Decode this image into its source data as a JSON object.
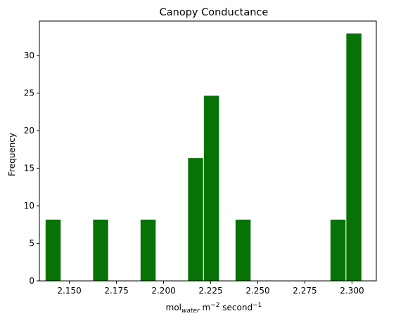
{
  "chart_data": {
    "type": "bar",
    "title": "Canopy Conductance",
    "ylabel": "Frequency",
    "xlabel": {
      "base": "mol",
      "subscript": "water",
      "middle": " m",
      "exp1": "−2",
      "tail": " second",
      "exp2": "−1"
    },
    "xlim": [
      2.1341,
      2.3129
    ],
    "ylim": [
      0,
      34.6
    ],
    "xticks": [
      "2.150",
      "2.175",
      "2.200",
      "2.225",
      "2.250",
      "2.275",
      "2.300"
    ],
    "xtick_values": [
      2.15,
      2.175,
      2.2,
      2.225,
      2.25,
      2.275,
      2.3
    ],
    "yticks": [
      0,
      5,
      10,
      15,
      20,
      25,
      30
    ],
    "bins": [
      {
        "x0": 2.1372,
        "x1": 2.1456,
        "value": 8.2
      },
      {
        "x0": 2.1456,
        "x1": 2.154,
        "value": 0
      },
      {
        "x0": 2.154,
        "x1": 2.1624,
        "value": 0
      },
      {
        "x0": 2.1624,
        "x1": 2.1708,
        "value": 8.2
      },
      {
        "x0": 2.1708,
        "x1": 2.1792,
        "value": 0
      },
      {
        "x0": 2.1792,
        "x1": 2.1876,
        "value": 0
      },
      {
        "x0": 2.1876,
        "x1": 2.196,
        "value": 8.2
      },
      {
        "x0": 2.196,
        "x1": 2.2044,
        "value": 0
      },
      {
        "x0": 2.2044,
        "x1": 2.2128,
        "value": 0
      },
      {
        "x0": 2.2128,
        "x1": 2.2212,
        "value": 16.4
      },
      {
        "x0": 2.2212,
        "x1": 2.2296,
        "value": 24.7
      },
      {
        "x0": 2.2296,
        "x1": 2.238,
        "value": 0
      },
      {
        "x0": 2.238,
        "x1": 2.2464,
        "value": 8.2
      },
      {
        "x0": 2.2464,
        "x1": 2.2548,
        "value": 0
      },
      {
        "x0": 2.2548,
        "x1": 2.2632,
        "value": 0
      },
      {
        "x0": 2.2632,
        "x1": 2.2716,
        "value": 0
      },
      {
        "x0": 2.2716,
        "x1": 2.28,
        "value": 0
      },
      {
        "x0": 2.28,
        "x1": 2.2884,
        "value": 0
      },
      {
        "x0": 2.2884,
        "x1": 2.2968,
        "value": 8.2
      },
      {
        "x0": 2.2968,
        "x1": 2.3052,
        "value": 33.0
      }
    ],
    "bar_color": "#077307",
    "edge_color": "#ffffff",
    "grid": false,
    "legend": "none"
  }
}
